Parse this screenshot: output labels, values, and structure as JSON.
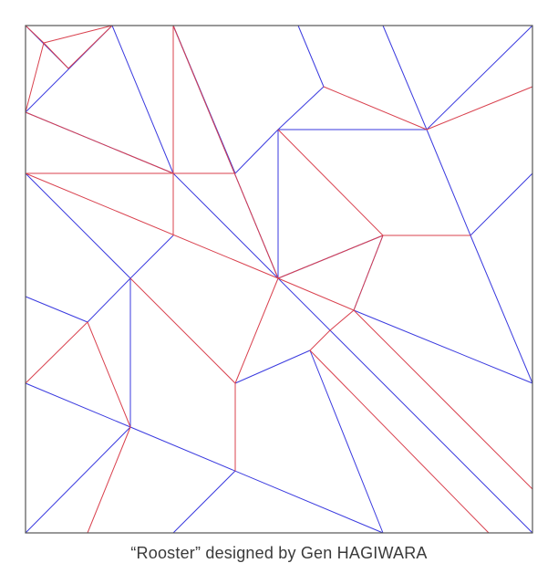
{
  "caption": "“Rooster” designed by Gen HAGIWARA",
  "colors": {
    "border": "#555555",
    "mountain": "#d9414e",
    "valley": "#3a3adf"
  }
}
